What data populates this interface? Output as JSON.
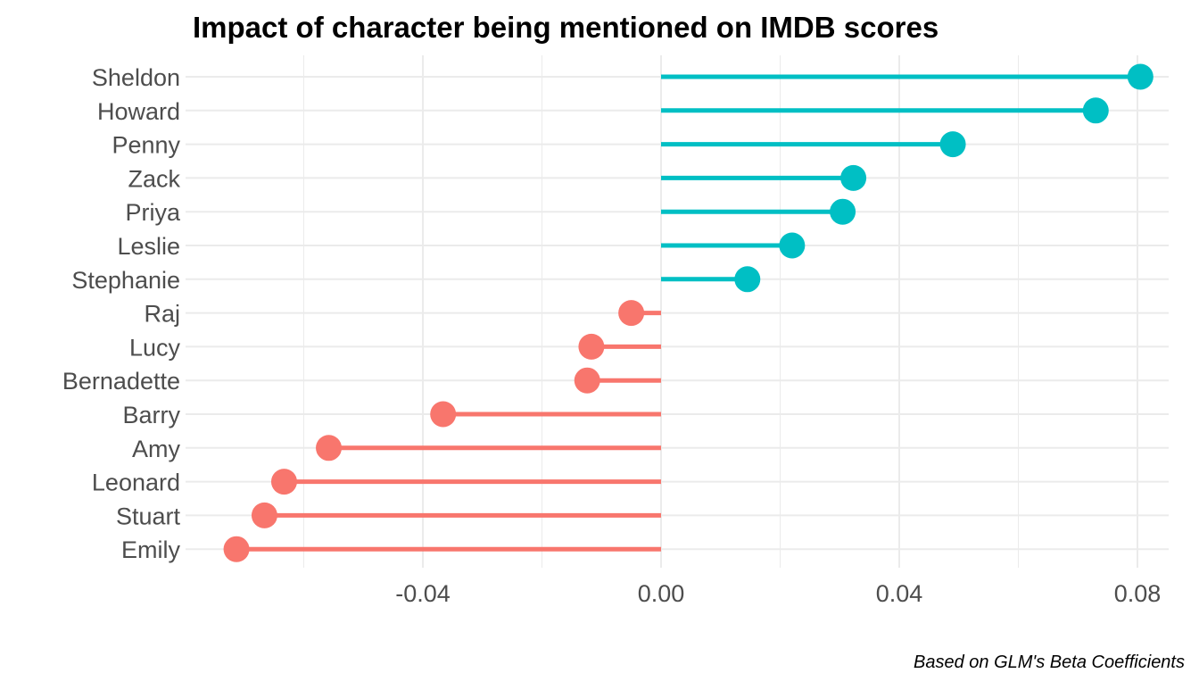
{
  "chart_data": {
    "type": "lollipop",
    "title": "Impact of character being mentioned on IMDB scores",
    "caption": "Based on GLM's Beta Coefficients",
    "xlabel": "",
    "ylabel": "",
    "xlim": [
      -0.0805,
      0.0855
    ],
    "x_ticks": [
      -0.04,
      0.0,
      0.04,
      0.08
    ],
    "x_tick_labels": [
      "-0.04",
      "0.00",
      "0.04",
      "0.08"
    ],
    "grid": true,
    "legend": "none",
    "colors": {
      "positive": "#00BFC4",
      "negative": "#F8766D"
    },
    "categories": [
      "Sheldon",
      "Howard",
      "Penny",
      "Zack",
      "Priya",
      "Leslie",
      "Stephanie",
      "Raj",
      "Lucy",
      "Bernadette",
      "Barry",
      "Amy",
      "Leonard",
      "Stuart",
      "Emily"
    ],
    "values": [
      0.0805,
      0.073,
      0.049,
      0.0323,
      0.0305,
      0.022,
      0.0145,
      -0.005,
      -0.0117,
      -0.0124,
      -0.0366,
      -0.0558,
      -0.0633,
      -0.0666,
      -0.0713
    ]
  }
}
